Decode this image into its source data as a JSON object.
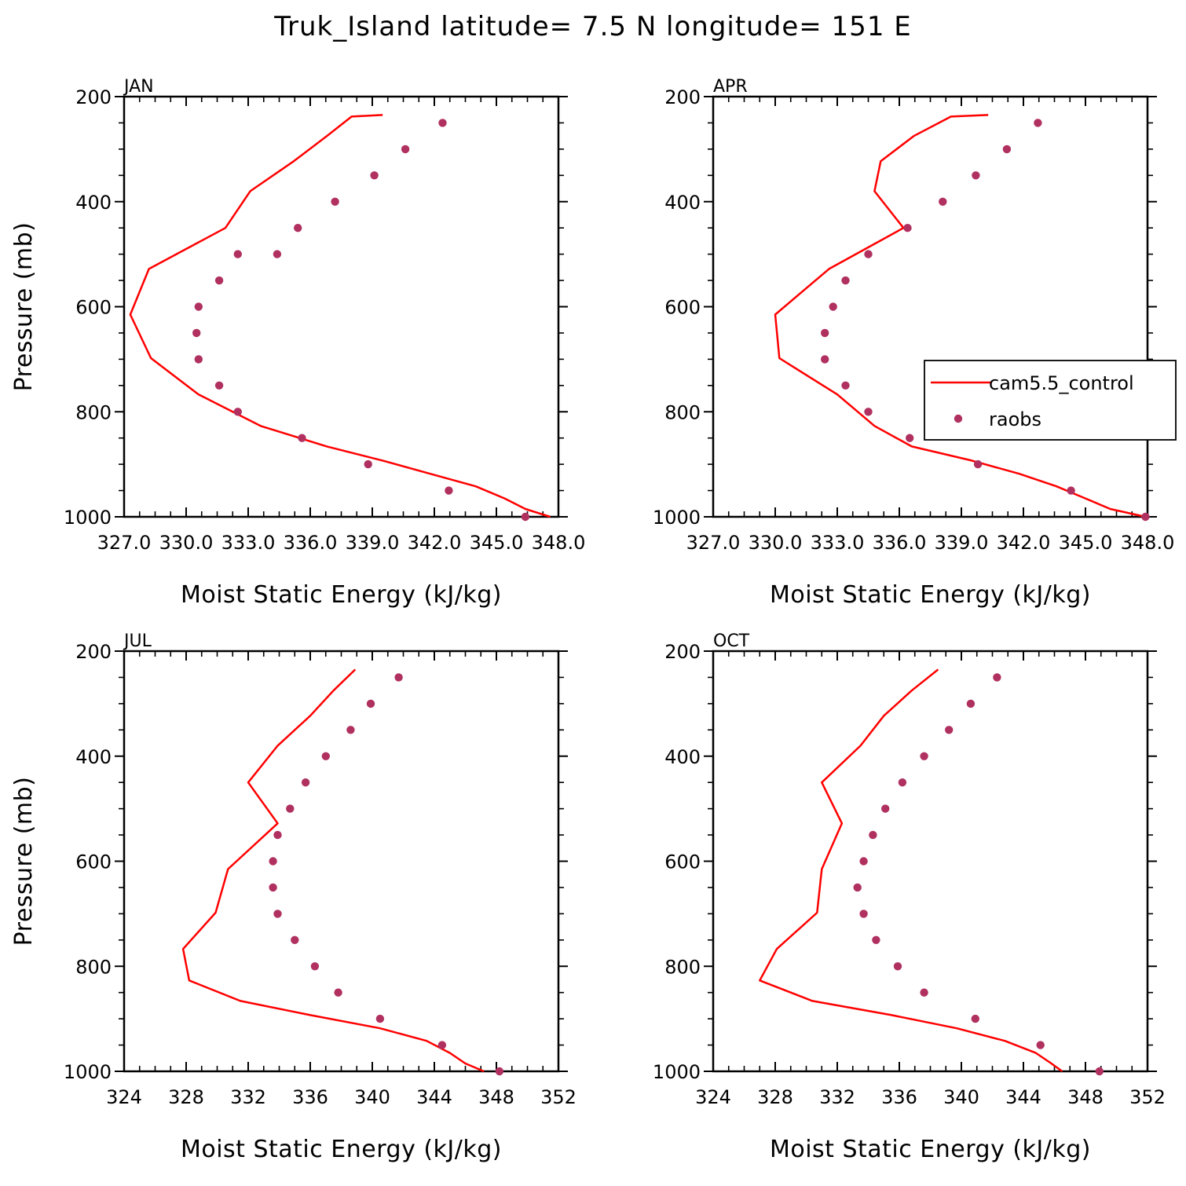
{
  "figure": {
    "title": "Truk_Island  latitude= 7.5 N longitude= 151 E"
  },
  "colors": {
    "model_line": "#ff0000",
    "obs_marker": "#b03060",
    "axes": "#000000"
  },
  "legend": {
    "items": [
      {
        "label": "cam5.5_control",
        "style": "line"
      },
      {
        "label": "raobs",
        "style": "marker"
      }
    ],
    "panel": "APR",
    "placement": "right"
  },
  "chart_data": [
    {
      "type": "line",
      "panel": "JAN",
      "title": "JAN",
      "xlabel": "Moist Static Energy (kJ/kg)",
      "ylabel": "Pressure (mb)",
      "xlim": [
        327,
        348
      ],
      "ylim": [
        1000,
        200
      ],
      "xticks": [
        327,
        330,
        333,
        336,
        339,
        342,
        345,
        348
      ],
      "xtick_labels": [
        "327.0",
        "330.0",
        "333.0",
        "336.0",
        "339.0",
        "342.0",
        "345.0",
        "348.0"
      ],
      "yticks": [
        200,
        400,
        600,
        800,
        1000
      ],
      "ytick_labels": [
        "200",
        "400",
        "600",
        "800",
        "1000"
      ],
      "series": [
        {
          "name": "cam5.5_control",
          "kind": "line",
          "x": [
            347.6,
            346.4,
            345.4,
            344.0,
            341.8,
            339.5,
            336.8,
            333.6,
            330.6,
            328.3,
            327.3,
            328.2,
            331.9,
            333.1,
            335.2,
            336.8,
            338.0,
            339.5
          ],
          "y": [
            1000,
            985,
            965,
            942,
            918,
            893,
            866,
            827,
            767,
            698,
            615,
            528,
            450,
            380,
            323,
            275,
            238,
            235
          ]
        },
        {
          "name": "raobs",
          "kind": "scatter",
          "x": [
            346.4,
            342.7,
            338.8,
            335.6,
            332.5,
            331.6,
            330.6,
            330.5,
            330.6,
            331.6,
            332.5,
            334.4,
            335.4,
            337.2,
            339.1,
            340.6,
            342.4
          ],
          "y": [
            1000,
            950,
            900,
            850,
            800,
            750,
            700,
            650,
            600,
            550,
            500,
            500,
            450,
            400,
            350,
            300,
            250
          ]
        }
      ]
    },
    {
      "type": "line",
      "panel": "APR",
      "title": "APR",
      "xlabel": "Moist Static Energy (kJ/kg)",
      "ylabel": "",
      "xlim": [
        327,
        348
      ],
      "ylim": [
        1000,
        200
      ],
      "xticks": [
        327,
        330,
        333,
        336,
        339,
        342,
        345,
        348
      ],
      "xtick_labels": [
        "327.0",
        "330.0",
        "333.0",
        "336.0",
        "339.0",
        "342.0",
        "345.0",
        "348.0"
      ],
      "yticks": [
        200,
        400,
        600,
        800,
        1000
      ],
      "ytick_labels": [
        "200",
        "400",
        "600",
        "800",
        "1000"
      ],
      "series": [
        {
          "name": "cam5.5_control",
          "kind": "line",
          "x": [
            347.9,
            346.2,
            345.0,
            343.6,
            341.8,
            339.5,
            336.6,
            334.8,
            333.0,
            330.2,
            330.0,
            332.6,
            336.2,
            334.8,
            335.1,
            336.7,
            338.5,
            340.3
          ],
          "y": [
            1000,
            985,
            965,
            942,
            918,
            893,
            866,
            827,
            767,
            698,
            615,
            528,
            450,
            380,
            323,
            275,
            238,
            235
          ]
        },
        {
          "name": "raobs",
          "kind": "scatter",
          "x": [
            347.9,
            344.3,
            339.8,
            336.5,
            334.5,
            333.4,
            332.4,
            332.4,
            332.8,
            333.4,
            334.5,
            336.4,
            338.1,
            339.7,
            341.2,
            342.7
          ],
          "y": [
            1000,
            950,
            900,
            850,
            800,
            750,
            700,
            650,
            600,
            550,
            500,
            450,
            400,
            350,
            300,
            250
          ]
        }
      ]
    },
    {
      "type": "line",
      "panel": "JUL",
      "title": "JUL",
      "xlabel": "Moist Static Energy (kJ/kg)",
      "ylabel": "Pressure (mb)",
      "xlim": [
        324,
        352
      ],
      "ylim": [
        1000,
        200
      ],
      "xticks": [
        324,
        328,
        332,
        336,
        340,
        344,
        348,
        352
      ],
      "xtick_labels": [
        "324",
        "328",
        "332",
        "336",
        "340",
        "344",
        "348",
        "352"
      ],
      "yticks": [
        200,
        400,
        600,
        800,
        1000
      ],
      "ytick_labels": [
        "200",
        "400",
        "600",
        "800",
        "1000"
      ],
      "series": [
        {
          "name": "cam5.5_control",
          "kind": "line",
          "x": [
            347.2,
            346.0,
            345.0,
            343.5,
            340.5,
            336.0,
            331.5,
            328.2,
            327.8,
            329.9,
            330.7,
            333.9,
            332.0,
            333.9,
            336.0,
            337.5,
            338.9
          ],
          "y": [
            1000,
            985,
            965,
            942,
            918,
            893,
            866,
            827,
            767,
            698,
            615,
            528,
            450,
            380,
            323,
            275,
            235
          ]
        },
        {
          "name": "raobs",
          "kind": "scatter",
          "x": [
            348.2,
            344.5,
            340.5,
            337.8,
            336.3,
            335.0,
            333.9,
            333.6,
            333.6,
            333.9,
            334.7,
            335.7,
            337.0,
            338.6,
            339.9,
            341.7
          ],
          "y": [
            1000,
            950,
            900,
            850,
            800,
            750,
            700,
            650,
            600,
            550,
            500,
            450,
            400,
            350,
            300,
            250
          ]
        }
      ]
    },
    {
      "type": "line",
      "panel": "OCT",
      "title": "OCT",
      "xlabel": "Moist Static Energy (kJ/kg)",
      "ylabel": "",
      "xlim": [
        324,
        352
      ],
      "ylim": [
        1000,
        200
      ],
      "xticks": [
        324,
        328,
        332,
        336,
        340,
        344,
        348,
        352
      ],
      "xtick_labels": [
        "324",
        "328",
        "332",
        "336",
        "340",
        "344",
        "348",
        "352"
      ],
      "yticks": [
        200,
        400,
        600,
        800,
        1000
      ],
      "ytick_labels": [
        "200",
        "400",
        "600",
        "800",
        "1000"
      ],
      "series": [
        {
          "name": "cam5.5_control",
          "kind": "line",
          "x": [
            346.5,
            345.8,
            344.8,
            342.8,
            339.7,
            335.5,
            330.4,
            327.0,
            328.1,
            330.7,
            331.0,
            332.3,
            331.0,
            333.5,
            335.0,
            336.8,
            338.5
          ],
          "y": [
            1000,
            985,
            965,
            942,
            918,
            893,
            866,
            827,
            767,
            698,
            615,
            528,
            450,
            380,
            323,
            275,
            235
          ]
        },
        {
          "name": "raobs",
          "kind": "scatter",
          "x": [
            348.9,
            345.1,
            340.9,
            337.6,
            335.9,
            334.5,
            333.7,
            333.3,
            333.7,
            334.3,
            335.1,
            336.2,
            337.6,
            339.2,
            340.6,
            342.3
          ],
          "y": [
            1000,
            950,
            900,
            850,
            800,
            750,
            700,
            650,
            600,
            550,
            500,
            450,
            400,
            350,
            300,
            250
          ]
        }
      ]
    }
  ]
}
